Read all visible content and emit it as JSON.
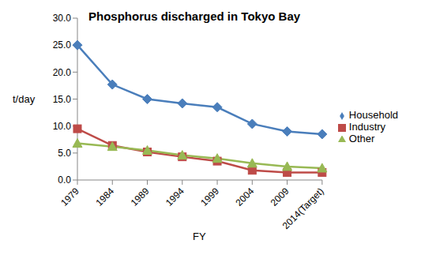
{
  "chart_data": {
    "type": "line",
    "title": "Phosphorus discharged in Tokyo Bay",
    "x_label": "FY",
    "y_label": "t/day",
    "categories": [
      "1979",
      "1984",
      "1989",
      "1994",
      "1999",
      "2004",
      "2009",
      "2014(Target)"
    ],
    "series": [
      {
        "name": "Household",
        "color": "#4a7ebb",
        "marker": "diamond",
        "values": [
          25.0,
          17.7,
          15.0,
          14.2,
          13.5,
          10.4,
          9.0,
          8.5
        ]
      },
      {
        "name": "Industry",
        "color": "#be4b48",
        "marker": "square",
        "values": [
          9.5,
          6.4,
          5.2,
          4.3,
          3.5,
          1.8,
          1.4,
          1.4
        ]
      },
      {
        "name": "Other",
        "color": "#98b954",
        "marker": "triangle",
        "values": [
          6.8,
          6.2,
          5.5,
          4.6,
          4.0,
          3.1,
          2.5,
          2.2
        ]
      }
    ],
    "ylim": [
      0,
      30
    ],
    "yticks": [
      {
        "value": 0,
        "label": "0.0"
      },
      {
        "value": 5,
        "label": "5.0"
      },
      {
        "value": 10,
        "label": "10.0"
      },
      {
        "value": 15,
        "label": "15.0"
      },
      {
        "value": 20,
        "label": "20.0"
      },
      {
        "value": 25,
        "label": "25.0"
      },
      {
        "value": 30,
        "label": "30.0"
      }
    ],
    "grid": false,
    "legend": "right"
  }
}
